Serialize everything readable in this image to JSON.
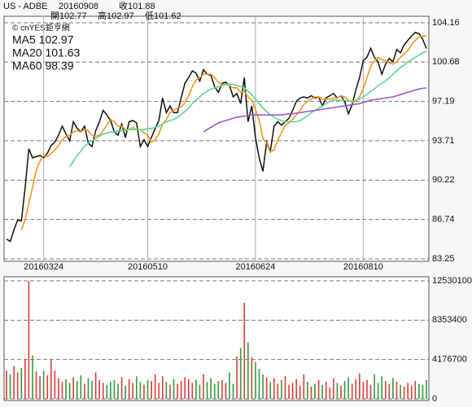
{
  "chart_data": [
    {
      "type": "line",
      "header": {
        "symbol": "US - ADBE",
        "date": "20160908",
        "close": "收101.88",
        "open": "開102.77",
        "high": "高102.97",
        "low": "低101.62"
      },
      "watermark": "© cnYES鉅亨網",
      "categories": [
        null,
        null,
        null,
        null,
        null,
        null,
        null,
        null,
        null,
        null,
        "20160324",
        null,
        null,
        null,
        null,
        null,
        null,
        null,
        null,
        null,
        null,
        null,
        null,
        null,
        null,
        null,
        null,
        null,
        null,
        null,
        null,
        null,
        null,
        null,
        null,
        null,
        null,
        null,
        "20160510",
        null,
        null,
        null,
        null,
        null,
        null,
        null,
        null,
        null,
        null,
        null,
        null,
        null,
        null,
        null,
        null,
        null,
        null,
        null,
        null,
        null,
        null,
        null,
        null,
        null,
        null,
        null,
        null,
        "20160624",
        null,
        null,
        null,
        null,
        null,
        null,
        null,
        null,
        null,
        null,
        null,
        null,
        null,
        null,
        null,
        null,
        null,
        null,
        null,
        null,
        null,
        null,
        null,
        null,
        null,
        null,
        null,
        null,
        "20160810",
        null,
        null,
        null,
        null,
        null,
        null,
        null,
        null,
        null,
        null,
        null,
        null,
        null,
        null,
        null,
        null,
        null
      ],
      "ylim": [
        83.25,
        104.16
      ],
      "yticks": [
        104.16,
        100.68,
        97.19,
        93.71,
        90.22,
        86.74,
        83.25
      ],
      "grid": true,
      "series": [
        {
          "color": "#111111",
          "values": [
            85.0,
            84.8,
            85.8,
            86.7,
            86.6,
            89.5,
            93.0,
            92.2,
            92.3,
            92.4,
            92.2,
            92.6,
            93.3,
            93.6,
            94.2,
            95.0,
            94.3,
            93.7,
            95.4,
            94.8,
            94.5,
            95.0,
            93.5,
            93.2,
            94.6,
            95.4,
            96.4,
            96.0,
            95.5,
            94.5,
            94.2,
            95.2,
            94.0,
            95.4,
            95.5,
            95.3,
            93.2,
            93.8,
            93.2,
            94.0,
            94.8,
            95.5,
            97.5,
            96.2,
            96.8,
            96.2,
            96.2,
            97.5,
            98.8,
            99.3,
            99.9,
            99.7,
            99.0,
            100.0,
            99.6,
            99.5,
            98.5,
            98.0,
            98.8,
            98.9,
            98.6,
            97.6,
            97.9,
            97.0,
            99.3,
            95.4,
            96.8,
            94.0,
            92.2,
            91.0,
            93.6,
            92.8,
            95.0,
            95.4,
            95.1,
            95.4,
            95.7,
            96.4,
            97.2,
            97.5,
            97.6,
            97.5,
            97.7,
            97.5,
            97.6,
            96.8,
            97.5,
            97.7,
            97.9,
            97.5,
            97.7,
            97.2,
            96.1,
            96.9,
            98.2,
            99.3,
            100.8,
            101.1,
            101.9,
            101.1,
            100.7,
            99.6,
            100.5,
            101.0,
            100.7,
            101.8,
            101.5,
            102.2,
            102.6,
            103.0,
            103.3,
            103.2,
            102.7,
            101.88
          ]
        },
        {
          "name": "MA5 102.97",
          "color": "#f7941d",
          "values": [
            null,
            null,
            null,
            null,
            85.8,
            86.7,
            88.1,
            89.6,
            91.1,
            91.9,
            92.4,
            92.3,
            92.6,
            92.9,
            93.3,
            93.8,
            94.1,
            94.2,
            94.5,
            94.6,
            94.5,
            94.7,
            94.6,
            94.2,
            94.1,
            94.2,
            94.6,
            95.1,
            95.6,
            95.4,
            95.0,
            95.0,
            94.7,
            94.7,
            94.9,
            94.7,
            94.7,
            94.4,
            94.2,
            93.6,
            93.8,
            94.3,
            95.2,
            95.6,
            96.2,
            96.4,
            96.6,
            96.7,
            97.1,
            97.7,
            98.5,
            99.1,
            99.3,
            99.6,
            99.6,
            99.6,
            99.3,
            98.9,
            98.7,
            98.7,
            98.6,
            98.4,
            98.4,
            98.0,
            98.1,
            97.6,
            97.3,
            96.5,
            95.5,
            93.9,
            93.5,
            92.7,
            92.9,
            93.8,
            94.4,
            95.1,
            95.3,
            95.6,
            96.0,
            96.4,
            96.9,
            97.2,
            97.4,
            97.6,
            97.6,
            97.4,
            97.4,
            97.4,
            97.5,
            97.5,
            97.7,
            97.6,
            97.3,
            97.1,
            97.2,
            97.6,
            98.3,
            99.3,
            100.3,
            100.8,
            101.1,
            100.9,
            100.8,
            100.6,
            100.5,
            100.7,
            101.1,
            101.4,
            101.7,
            102.2,
            102.6,
            102.9,
            103.0,
            102.97
          ]
        },
        {
          "name": "MA20 101.63",
          "color": "#5bd88e",
          "values": [
            null,
            null,
            null,
            null,
            null,
            null,
            null,
            null,
            null,
            null,
            null,
            null,
            null,
            null,
            null,
            null,
            null,
            91.4,
            91.9,
            92.4,
            92.8,
            93.2,
            93.5,
            93.7,
            93.9,
            94.1,
            94.3,
            94.4,
            94.5,
            94.5,
            94.6,
            94.6,
            94.6,
            94.7,
            94.7,
            94.7,
            94.7,
            94.7,
            94.8,
            94.8,
            94.9,
            95.0,
            95.2,
            95.4,
            95.5,
            95.6,
            95.8,
            96.0,
            96.3,
            96.6,
            97.0,
            97.3,
            97.6,
            97.9,
            98.1,
            98.3,
            98.4,
            98.5,
            98.6,
            98.7,
            98.7,
            98.7,
            98.6,
            98.5,
            98.4,
            98.1,
            97.8,
            97.4,
            97.0,
            96.6,
            96.3,
            96.0,
            95.8,
            95.6,
            95.5,
            95.4,
            95.4,
            95.4,
            95.4,
            95.5,
            95.7,
            95.9,
            96.2,
            96.4,
            96.6,
            96.8,
            97.0,
            97.2,
            97.3,
            97.3,
            97.3,
            97.3,
            97.2,
            97.2,
            97.3,
            97.4,
            97.6,
            97.8,
            98.1,
            98.3,
            98.6,
            98.8,
            99.0,
            99.3,
            99.6,
            99.9,
            100.2,
            100.4,
            100.7,
            100.9,
            101.1,
            101.3,
            101.5,
            101.63
          ]
        },
        {
          "name": "MA60 98.39",
          "color": "#9b59d9",
          "values": [
            null,
            null,
            null,
            null,
            null,
            null,
            null,
            null,
            null,
            null,
            null,
            null,
            null,
            null,
            null,
            null,
            null,
            null,
            null,
            null,
            null,
            null,
            null,
            null,
            null,
            null,
            null,
            null,
            null,
            null,
            null,
            null,
            null,
            null,
            null,
            null,
            null,
            null,
            null,
            null,
            null,
            null,
            null,
            null,
            null,
            null,
            null,
            null,
            null,
            null,
            null,
            null,
            null,
            94.5,
            94.7,
            94.9,
            95.1,
            95.3,
            95.4,
            95.5,
            95.6,
            95.7,
            95.8,
            95.85,
            95.9,
            95.95,
            96.0,
            96.0,
            96.0,
            96.0,
            96.0,
            96.0,
            96.0,
            96.0,
            96.0,
            96.05,
            96.1,
            96.1,
            96.15,
            96.2,
            96.25,
            96.3,
            96.35,
            96.4,
            96.45,
            96.5,
            96.55,
            96.6,
            96.65,
            96.7,
            96.75,
            96.8,
            96.85,
            96.9,
            96.95,
            97.0,
            97.1,
            97.2,
            97.3,
            97.35,
            97.4,
            97.45,
            97.5,
            97.55,
            97.6,
            97.7,
            97.8,
            97.9,
            98.0,
            98.1,
            98.2,
            98.3,
            98.35,
            98.39
          ]
        }
      ]
    },
    {
      "type": "bar",
      "ylim": [
        0,
        12530100
      ],
      "yticks": [
        12530100,
        8353400,
        4176700,
        0
      ],
      "grid": true,
      "up_color": "#e03a3a",
      "down_color": "#2e9b3e",
      "values": [
        3000000,
        2600000,
        3500000,
        2800000,
        3300000,
        4200000,
        12530100,
        4600000,
        2900000,
        2400000,
        3000000,
        2500000,
        4200000,
        3000000,
        2200000,
        1800000,
        2100000,
        1700000,
        2300000,
        1900000,
        2500000,
        1600000,
        2200000,
        1900000,
        2800000,
        2000000,
        1700000,
        1500000,
        1800000,
        2000000,
        1600000,
        2300000,
        1400000,
        2100000,
        1700000,
        2400000,
        1800000,
        1500000,
        2000000,
        1900000,
        2600000,
        1700000,
        2400000,
        1800000,
        1500000,
        2100000,
        1600000,
        1900000,
        2300000,
        2100000,
        1700000,
        2000000,
        1500000,
        2600000,
        1800000,
        2200000,
        1600000,
        1900000,
        2000000,
        1700000,
        2800000,
        1600000,
        4500000,
        5400000,
        10200000,
        6000000,
        4400000,
        3900000,
        3200000,
        2600000,
        2300000,
        1800000,
        2200000,
        1600000,
        2000000,
        2400000,
        1500000,
        1700000,
        2100000,
        1400000,
        2600000,
        1800000,
        1300000,
        1600000,
        2000000,
        1500000,
        1800000,
        1200000,
        2200000,
        1700000,
        1400000,
        1900000,
        2300000,
        1600000,
        2100000,
        2700000,
        1800000,
        2000000,
        1500000,
        2600000,
        1700000,
        2400000,
        1900000,
        1600000,
        2200000,
        1800000,
        1500000,
        1300000,
        1700000,
        1400000,
        1900000,
        1600000,
        1500000,
        2000000
      ]
    }
  ]
}
